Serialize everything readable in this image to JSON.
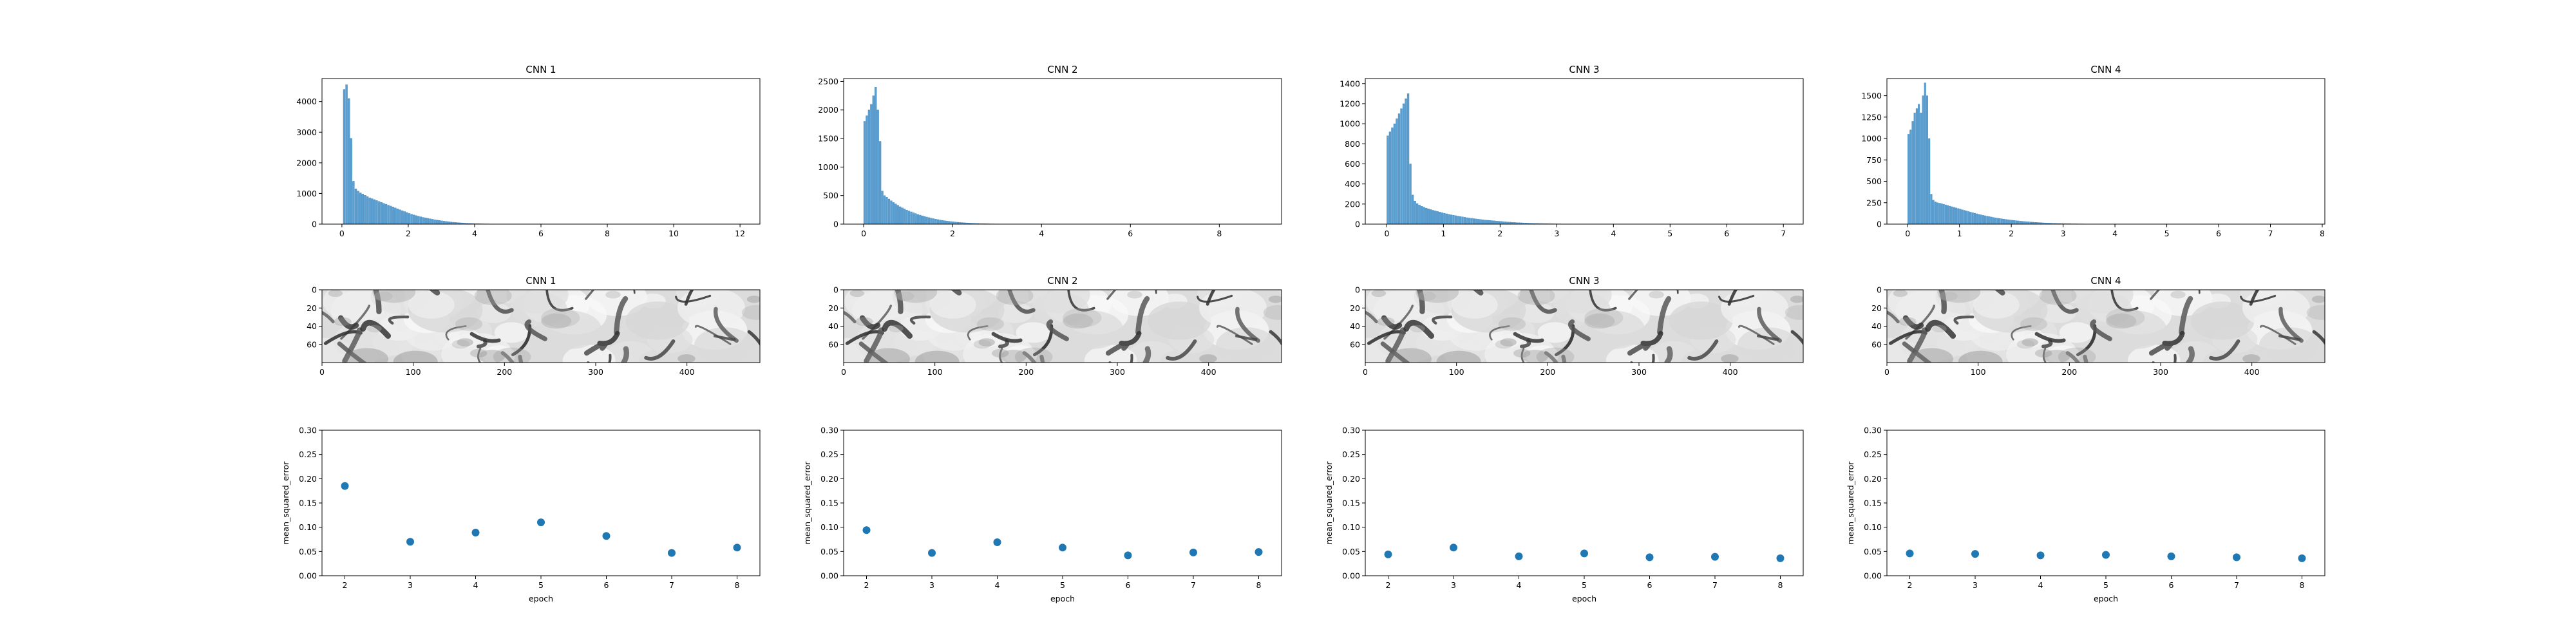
{
  "figure": {
    "hist_color": "#5b9fd0",
    "hist_edge": "#3f86c0",
    "scatter_color": "#1f77b4",
    "titles": [
      "CNN 1",
      "CNN 2",
      "CNN 3",
      "CNN 4"
    ]
  },
  "chart_data": [
    {
      "type": "bar",
      "panel": "hist",
      "title": "CNN 1",
      "xlim": [
        -0.6,
        12.6
      ],
      "ylim": [
        0,
        4750
      ],
      "xticks": [
        0,
        2,
        4,
        6,
        8,
        10,
        12
      ],
      "yticks": [
        0,
        1000,
        2000,
        3000,
        4000
      ],
      "bin_width": 0.07,
      "x": [
        0.04,
        0.11,
        0.18,
        0.25,
        0.32,
        0.39,
        0.46,
        0.53,
        0.6,
        0.67,
        0.74,
        0.81,
        0.88,
        0.95,
        1.02,
        1.09,
        1.16,
        1.23,
        1.3,
        1.37,
        1.44,
        1.51,
        1.58,
        1.65,
        1.72,
        1.79,
        1.86,
        1.93,
        2.0,
        2.07,
        2.14,
        2.21,
        2.28,
        2.35,
        2.42,
        2.49,
        2.56,
        2.63,
        2.7,
        2.77,
        2.84,
        2.91,
        2.98,
        3.05,
        3.12,
        3.19,
        3.26,
        3.33,
        3.4,
        3.47,
        3.54,
        3.61,
        3.68,
        3.75,
        3.82,
        3.89,
        3.96,
        4.03,
        4.1,
        4.17,
        4.24,
        4.31,
        4.38,
        4.45,
        4.52,
        4.59,
        4.66,
        4.73,
        4.8,
        4.87,
        4.94,
        5.01,
        5.08,
        5.15,
        5.22,
        5.29,
        5.36,
        5.43,
        5.5,
        5.57,
        5.64,
        5.71,
        5.78,
        5.85,
        5.92,
        5.99
      ],
      "values": [
        4400,
        4550,
        4100,
        2800,
        1400,
        1150,
        1080,
        1020,
        980,
        940,
        900,
        860,
        830,
        800,
        770,
        740,
        710,
        680,
        650,
        620,
        590,
        560,
        530,
        500,
        470,
        440,
        410,
        380,
        350,
        325,
        300,
        280,
        260,
        240,
        220,
        205,
        190,
        175,
        160,
        145,
        132,
        120,
        108,
        97,
        87,
        78,
        70,
        62,
        55,
        49,
        43,
        38,
        33,
        29,
        25,
        22,
        19,
        16,
        14,
        12,
        10,
        9,
        8,
        7,
        6,
        5,
        4,
        4,
        3,
        3,
        2,
        2,
        2,
        1,
        1,
        1,
        1,
        1,
        1,
        1,
        1,
        1,
        1,
        1,
        1,
        1
      ]
    },
    {
      "type": "bar",
      "panel": "hist",
      "title": "CNN 2",
      "xlim": [
        -0.45,
        9.4
      ],
      "ylim": [
        0,
        2550
      ],
      "xticks": [
        0,
        2,
        4,
        6,
        8
      ],
      "yticks": [
        0,
        500,
        1000,
        1500,
        2000,
        2500
      ],
      "bin_width": 0.05,
      "x": [
        0.0,
        0.05,
        0.1,
        0.15,
        0.2,
        0.25,
        0.3,
        0.35,
        0.4,
        0.45,
        0.5,
        0.55,
        0.6,
        0.65,
        0.7,
        0.75,
        0.8,
        0.85,
        0.9,
        0.95,
        1.0,
        1.05,
        1.1,
        1.15,
        1.2,
        1.25,
        1.3,
        1.35,
        1.4,
        1.45,
        1.5,
        1.55,
        1.6,
        1.65,
        1.7,
        1.75,
        1.8,
        1.85,
        1.9,
        1.95,
        2.0,
        2.05,
        2.1,
        2.15,
        2.2,
        2.25,
        2.3,
        2.35,
        2.4,
        2.45,
        2.5,
        2.55,
        2.6,
        2.65,
        2.7,
        2.75,
        2.8,
        2.85,
        2.9,
        2.95,
        3.0,
        3.05,
        3.1,
        3.15,
        3.2,
        3.25,
        3.3,
        3.35,
        3.4,
        3.45,
        3.5,
        3.55,
        3.6,
        3.65,
        3.7,
        3.75,
        3.8,
        3.85,
        3.9,
        3.95,
        4.0,
        4.05,
        4.1,
        4.15,
        4.2,
        4.25,
        4.3,
        4.35,
        4.4,
        4.45
      ],
      "values": [
        1800,
        1900,
        2000,
        2100,
        2250,
        2400,
        2000,
        1450,
        580,
        500,
        470,
        440,
        410,
        380,
        355,
        330,
        305,
        285,
        265,
        245,
        230,
        215,
        200,
        185,
        170,
        158,
        146,
        135,
        124,
        114,
        105,
        96,
        88,
        80,
        73,
        66,
        60,
        55,
        50,
        45,
        41,
        37,
        33,
        30,
        27,
        24,
        21,
        19,
        17,
        15,
        13,
        12,
        10,
        9,
        8,
        7,
        6,
        5,
        5,
        4,
        4,
        3,
        3,
        2,
        2,
        2,
        2,
        1,
        1,
        1,
        1,
        1,
        1,
        1,
        1,
        1,
        1,
        1,
        1,
        1,
        1,
        1,
        1,
        1,
        1,
        1,
        1,
        1,
        1,
        1
      ]
    },
    {
      "type": "bar",
      "panel": "hist",
      "title": "CNN 3",
      "xlim": [
        -0.38,
        7.35
      ],
      "ylim": [
        0,
        1450
      ],
      "xticks": [
        0,
        1,
        2,
        3,
        4,
        5,
        6,
        7
      ],
      "yticks": [
        0,
        200,
        400,
        600,
        800,
        1000,
        1200,
        1400
      ],
      "bin_width": 0.04,
      "x": [
        0.0,
        0.04,
        0.08,
        0.12,
        0.16,
        0.2,
        0.24,
        0.28,
        0.32,
        0.36,
        0.4,
        0.44,
        0.48,
        0.52,
        0.56,
        0.6,
        0.64,
        0.68,
        0.72,
        0.76,
        0.8,
        0.84,
        0.88,
        0.92,
        0.96,
        1.0,
        1.04,
        1.08,
        1.12,
        1.16,
        1.2,
        1.24,
        1.28,
        1.32,
        1.36,
        1.4,
        1.44,
        1.48,
        1.52,
        1.56,
        1.6,
        1.64,
        1.68,
        1.72,
        1.76,
        1.8,
        1.84,
        1.88,
        1.92,
        1.96,
        2.0,
        2.04,
        2.08,
        2.12,
        2.16,
        2.2,
        2.24,
        2.28,
        2.32,
        2.36,
        2.4,
        2.44,
        2.48,
        2.52,
        2.56,
        2.6,
        2.64,
        2.68,
        2.72,
        2.76,
        2.8,
        2.84,
        2.88,
        2.92,
        2.96,
        3.0,
        3.04,
        3.08,
        3.12,
        3.16,
        3.2,
        3.24,
        3.28,
        3.32,
        3.36,
        3.4,
        3.44,
        3.48,
        3.52,
        3.56,
        3.6,
        3.64,
        3.68,
        3.72,
        3.76,
        3.8,
        3.84,
        3.88,
        3.92,
        3.96,
        4.0
      ],
      "values": [
        880,
        920,
        960,
        1000,
        1050,
        1100,
        1150,
        1200,
        1250,
        1300,
        600,
        290,
        230,
        205,
        190,
        178,
        168,
        160,
        152,
        145,
        138,
        132,
        126,
        120,
        114,
        108,
        103,
        98,
        93,
        88,
        84,
        80,
        76,
        72,
        68,
        64,
        61,
        58,
        55,
        52,
        49,
        46,
        43,
        41,
        39,
        37,
        35,
        33,
        31,
        29,
        27,
        25,
        23,
        21,
        20,
        18,
        17,
        15,
        14,
        13,
        12,
        11,
        10,
        9,
        8,
        7,
        7,
        6,
        6,
        5,
        5,
        4,
        4,
        4,
        3,
        3,
        3,
        2,
        2,
        2,
        2,
        2,
        1,
        1,
        1,
        1,
        1,
        1,
        1,
        1,
        1,
        1,
        1,
        1,
        1,
        1,
        1,
        1,
        1,
        1,
        1
      ]
    },
    {
      "type": "bar",
      "panel": "hist",
      "title": "CNN 4",
      "xlim": [
        -0.4,
        8.05
      ],
      "ylim": [
        0,
        1700
      ],
      "xticks": [
        0,
        1,
        2,
        3,
        4,
        5,
        6,
        7,
        8
      ],
      "yticks": [
        0,
        250,
        500,
        750,
        1000,
        1250,
        1500
      ],
      "bin_width": 0.04,
      "x": [
        0.0,
        0.04,
        0.08,
        0.12,
        0.16,
        0.2,
        0.24,
        0.28,
        0.32,
        0.36,
        0.4,
        0.44,
        0.48,
        0.52,
        0.56,
        0.6,
        0.64,
        0.68,
        0.72,
        0.76,
        0.8,
        0.84,
        0.88,
        0.92,
        0.96,
        1.0,
        1.04,
        1.08,
        1.12,
        1.16,
        1.2,
        1.24,
        1.28,
        1.32,
        1.36,
        1.4,
        1.44,
        1.48,
        1.52,
        1.56,
        1.6,
        1.64,
        1.68,
        1.72,
        1.76,
        1.8,
        1.84,
        1.88,
        1.92,
        1.96,
        2.0,
        2.04,
        2.08,
        2.12,
        2.16,
        2.2,
        2.24,
        2.28,
        2.32,
        2.36,
        2.4,
        2.44,
        2.48,
        2.52,
        2.56,
        2.6,
        2.64,
        2.68,
        2.72,
        2.76,
        2.8,
        2.84,
        2.88,
        2.92,
        2.96,
        3.0,
        3.04,
        3.08,
        3.12,
        3.16,
        3.2,
        3.24,
        3.28,
        3.32,
        3.36,
        3.4,
        3.44,
        3.48,
        3.52,
        3.56,
        3.6,
        3.64,
        3.68,
        3.72,
        3.76,
        3.8,
        3.84,
        3.88,
        3.92,
        3.96,
        4.0,
        4.04,
        4.08,
        4.12,
        4.16,
        4.2,
        4.24,
        4.28,
        4.32,
        4.36,
        4.4,
        4.44
      ],
      "values": [
        1050,
        1100,
        1200,
        1300,
        1350,
        1400,
        1300,
        1500,
        1650,
        1500,
        1000,
        350,
        280,
        260,
        250,
        245,
        240,
        232,
        225,
        218,
        210,
        203,
        196,
        189,
        182,
        175,
        168,
        161,
        154,
        147,
        140,
        133,
        127,
        121,
        115,
        109,
        103,
        98,
        93,
        88,
        83,
        78,
        74,
        70,
        66,
        62,
        58,
        55,
        52,
        49,
        46,
        43,
        40,
        38,
        35,
        33,
        31,
        29,
        27,
        25,
        23,
        21,
        20,
        18,
        17,
        15,
        14,
        13,
        12,
        11,
        10,
        9,
        8,
        8,
        7,
        6,
        6,
        5,
        5,
        4,
        4,
        4,
        3,
        3,
        3,
        2,
        2,
        2,
        2,
        2,
        1,
        1,
        1,
        1,
        1,
        1,
        1,
        1,
        1,
        1,
        1,
        1,
        1,
        1,
        1,
        1,
        1,
        1,
        1,
        1,
        1,
        1
      ]
    },
    {
      "type": "heatmap",
      "panel": "image",
      "title": "CNN 1",
      "xticks": [
        0,
        100,
        200,
        300,
        400
      ],
      "yticks": [
        0,
        20,
        40,
        60
      ],
      "xlim": [
        0,
        480
      ],
      "ylim": [
        0,
        80
      ],
      "seed": 1
    },
    {
      "type": "heatmap",
      "panel": "image",
      "title": "CNN 2",
      "xticks": [
        0,
        100,
        200,
        300,
        400
      ],
      "yticks": [
        0,
        20,
        40,
        60
      ],
      "xlim": [
        0,
        480
      ],
      "ylim": [
        0,
        80
      ],
      "seed": 2
    },
    {
      "type": "heatmap",
      "panel": "image",
      "title": "CNN 3",
      "xticks": [
        0,
        100,
        200,
        300,
        400
      ],
      "yticks": [
        0,
        20,
        40,
        60
      ],
      "xlim": [
        0,
        480
      ],
      "ylim": [
        0,
        80
      ],
      "seed": 3
    },
    {
      "type": "heatmap",
      "panel": "image",
      "title": "CNN 4",
      "xticks": [
        0,
        100,
        200,
        300,
        400
      ],
      "yticks": [
        0,
        20,
        40,
        60
      ],
      "xlim": [
        0,
        480
      ],
      "ylim": [
        0,
        80
      ],
      "seed": 4
    },
    {
      "type": "scatter",
      "panel": "mse",
      "xlabel": "epoch",
      "ylabel": "mean_squared_error",
      "xlim": [
        1.65,
        8.35
      ],
      "ylim": [
        0,
        0.3
      ],
      "xticks": [
        2,
        3,
        4,
        5,
        6,
        7,
        8
      ],
      "yticks": [
        0.0,
        0.05,
        0.1,
        0.15,
        0.2,
        0.25,
        0.3
      ],
      "x": [
        2,
        3,
        4,
        5,
        6,
        7,
        8
      ],
      "y": [
        0.185,
        0.07,
        0.089,
        0.11,
        0.082,
        0.047,
        0.058
      ]
    },
    {
      "type": "scatter",
      "panel": "mse",
      "xlabel": "epoch",
      "ylabel": "mean_squared_error",
      "xlim": [
        1.65,
        8.35
      ],
      "ylim": [
        0,
        0.3
      ],
      "xticks": [
        2,
        3,
        4,
        5,
        6,
        7,
        8
      ],
      "yticks": [
        0.0,
        0.05,
        0.1,
        0.15,
        0.2,
        0.25,
        0.3
      ],
      "x": [
        2,
        3,
        4,
        5,
        6,
        7,
        8
      ],
      "y": [
        0.094,
        0.047,
        0.069,
        0.058,
        0.042,
        0.048,
        0.049
      ]
    },
    {
      "type": "scatter",
      "panel": "mse",
      "xlabel": "epoch",
      "ylabel": "mean_squared_error",
      "xlim": [
        1.65,
        8.35
      ],
      "ylim": [
        0,
        0.3
      ],
      "xticks": [
        2,
        3,
        4,
        5,
        6,
        7,
        8
      ],
      "yticks": [
        0.0,
        0.05,
        0.1,
        0.15,
        0.2,
        0.25,
        0.3
      ],
      "x": [
        2,
        3,
        4,
        5,
        6,
        7,
        8
      ],
      "y": [
        0.044,
        0.058,
        0.04,
        0.046,
        0.038,
        0.039,
        0.036
      ]
    },
    {
      "type": "scatter",
      "panel": "mse",
      "xlabel": "epoch",
      "ylabel": "mean_squared_error",
      "xlim": [
        1.65,
        8.35
      ],
      "ylim": [
        0,
        0.3
      ],
      "xticks": [
        2,
        3,
        4,
        5,
        6,
        7,
        8
      ],
      "yticks": [
        0.0,
        0.05,
        0.1,
        0.15,
        0.2,
        0.25,
        0.3
      ],
      "x": [
        2,
        3,
        4,
        5,
        6,
        7,
        8
      ],
      "y": [
        0.046,
        0.045,
        0.042,
        0.043,
        0.04,
        0.038,
        0.036
      ]
    }
  ]
}
